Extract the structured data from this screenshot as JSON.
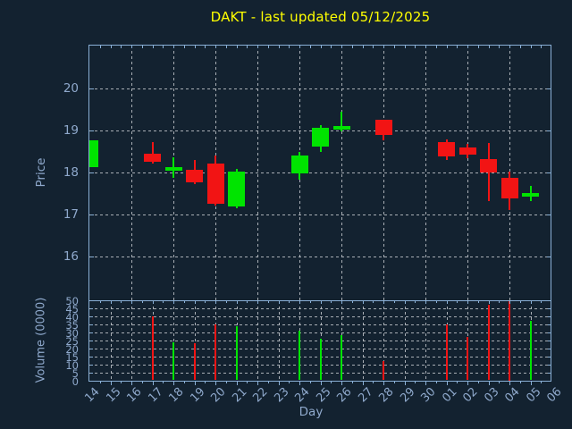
{
  "title": "DAKT - last updated 05/12/2025",
  "axes": {
    "price_label": "Price",
    "volume_label": "Volume (0000)",
    "day_label": "Day",
    "price_ticks": [
      "20",
      "19",
      "18",
      "17",
      "16"
    ],
    "price_tick_values": [
      20,
      19,
      18,
      17,
      16
    ],
    "volume_ticks": [
      "50",
      "45",
      "40",
      "35",
      "30",
      "25",
      "20",
      "15",
      "10",
      "5",
      "0"
    ],
    "volume_tick_values": [
      50,
      45,
      40,
      35,
      30,
      25,
      20,
      15,
      10,
      5,
      0
    ],
    "day_ticks": [
      "14",
      "15",
      "16",
      "17",
      "18",
      "19",
      "20",
      "21",
      "22",
      "23",
      "24",
      "25",
      "26",
      "27",
      "28",
      "29",
      "30",
      "01",
      "02",
      "03",
      "04",
      "05",
      "06"
    ]
  },
  "colors": {
    "background": "#132230",
    "axis": "#8ab0d6",
    "text": "#8fa9cc",
    "grid": "#c3c7cc",
    "title": "#ffff00",
    "up": "#00e400",
    "down": "#f21414"
  },
  "chart_data": {
    "type": "candlestick",
    "subpanels": [
      "price",
      "volume"
    ],
    "x_categories": [
      "14",
      "15",
      "16",
      "17",
      "18",
      "19",
      "20",
      "21",
      "22",
      "23",
      "24",
      "25",
      "26",
      "27",
      "28",
      "29",
      "30",
      "01",
      "02",
      "03",
      "04",
      "05",
      "06"
    ],
    "price_axis_range": [
      15.0,
      21.05
    ],
    "volume_axis_range": [
      0,
      50
    ],
    "grid": "dashed",
    "candles": [
      {
        "day": "14",
        "index": 0,
        "open": 18.13,
        "high": 18.77,
        "low": 18.13,
        "close": 18.77,
        "direction": "up",
        "volume": null
      },
      {
        "day": "17",
        "index": 3,
        "open": 18.45,
        "high": 18.73,
        "low": 18.22,
        "close": 18.25,
        "direction": "down",
        "volume": 40
      },
      {
        "day": "18",
        "index": 4,
        "open": 18.08,
        "high": 18.36,
        "low": 17.86,
        "close": 18.12,
        "direction": "up",
        "volume": 24
      },
      {
        "day": "19",
        "index": 5,
        "open": 18.06,
        "high": 18.29,
        "low": 17.72,
        "close": 17.77,
        "direction": "down",
        "volume": 23
      },
      {
        "day": "20",
        "index": 6,
        "open": 18.21,
        "high": 18.4,
        "low": 17.21,
        "close": 17.26,
        "direction": "down",
        "volume": 35
      },
      {
        "day": "21",
        "index": 7,
        "open": 17.19,
        "high": 18.08,
        "low": 17.14,
        "close": 18.02,
        "direction": "up",
        "volume": 34
      },
      {
        "day": "24",
        "index": 10,
        "open": 17.98,
        "high": 18.48,
        "low": 17.83,
        "close": 18.41,
        "direction": "up",
        "volume": 31
      },
      {
        "day": "25",
        "index": 11,
        "open": 18.62,
        "high": 19.12,
        "low": 18.48,
        "close": 19.07,
        "direction": "up",
        "volume": 26
      },
      {
        "day": "26",
        "index": 12,
        "open": 19.06,
        "high": 19.45,
        "low": 18.97,
        "close": 19.1,
        "direction": "up",
        "volume": 28
      },
      {
        "day": "28",
        "index": 14,
        "open": 19.26,
        "high": 19.26,
        "low": 18.77,
        "close": 18.9,
        "direction": "down",
        "volume": 12
      },
      {
        "day": "01",
        "index": 17,
        "open": 18.71,
        "high": 18.78,
        "low": 18.3,
        "close": 18.38,
        "direction": "down",
        "volume": 35
      },
      {
        "day": "02",
        "index": 18,
        "open": 18.59,
        "high": 18.67,
        "low": 18.34,
        "close": 18.42,
        "direction": "down",
        "volume": 27
      },
      {
        "day": "03",
        "index": 19,
        "open": 18.31,
        "high": 18.69,
        "low": 17.32,
        "close": 18.0,
        "direction": "down",
        "volume": 47
      },
      {
        "day": "04",
        "index": 20,
        "open": 17.88,
        "high": 18.01,
        "low": 17.1,
        "close": 17.38,
        "direction": "down",
        "volume": 50
      },
      {
        "day": "05",
        "index": 21,
        "open": 17.48,
        "high": 17.68,
        "low": 17.32,
        "close": 17.52,
        "direction": "up",
        "volume": 37
      }
    ]
  }
}
